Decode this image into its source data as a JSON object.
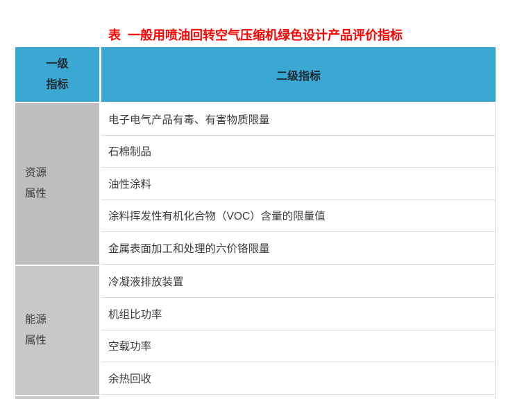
{
  "title": "表  一般用喷油回转空气压缩机绿色设计产品评价指标",
  "header": {
    "col1": [
      "一级",
      "指标"
    ],
    "col2": "二级指标"
  },
  "groups": [
    {
      "label": [
        "资源",
        "属性"
      ],
      "items": [
        "电子电气产品有毒、有害物质限量",
        "石棉制品",
        "油性涂料",
        "涂料挥发性有机化合物（VOC）含量的限量值",
        "金属表面加工和处理的六价铬限量"
      ]
    },
    {
      "label": [
        "能源",
        "属性"
      ],
      "items": [
        "冷凝液排放装置",
        "机组比功率",
        "空载功率",
        "余热回收"
      ]
    }
  ],
  "colors": {
    "title_red": "#FE0000",
    "header_blue": "#3BA7D3",
    "header_text": "#1B2830",
    "group1_gray": "#BEBEBE",
    "group2_gray": "#C8C8C8",
    "row_border": "#D9D9D9",
    "body_text": "#3C3C3C",
    "background": "#FFFFFF"
  }
}
